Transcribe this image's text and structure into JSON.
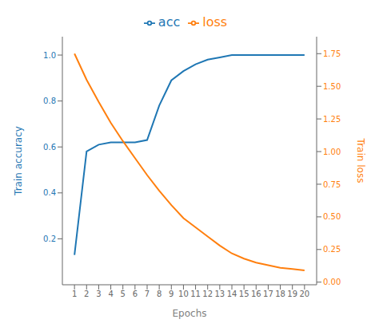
{
  "chart_data": {
    "type": "line",
    "xlabel": "Epochs",
    "ylabel": "Train accuracy",
    "y2label": "Train loss",
    "x": [
      1,
      2,
      3,
      4,
      5,
      6,
      7,
      8,
      9,
      10,
      11,
      12,
      13,
      14,
      15,
      16,
      17,
      18,
      19,
      20
    ],
    "series": [
      {
        "name": "acc",
        "color": "#1f77b4",
        "axis": "y",
        "values": [
          0.13,
          0.58,
          0.61,
          0.62,
          0.62,
          0.62,
          0.63,
          0.78,
          0.89,
          0.93,
          0.96,
          0.98,
          0.99,
          1.0,
          1.0,
          1.0,
          1.0,
          1.0,
          1.0,
          1.0
        ]
      },
      {
        "name": "loss",
        "color": "#ff7f0e",
        "axis": "y2",
        "values": [
          1.75,
          1.55,
          1.38,
          1.22,
          1.08,
          0.95,
          0.82,
          0.7,
          0.59,
          0.49,
          0.42,
          0.35,
          0.28,
          0.22,
          0.18,
          0.15,
          0.13,
          0.11,
          0.1,
          0.09
        ]
      }
    ],
    "xlim": [
      0,
      21
    ],
    "xticks": [
      1,
      2,
      3,
      4,
      5,
      6,
      7,
      8,
      9,
      10,
      11,
      12,
      13,
      14,
      15,
      16,
      17,
      18,
      19,
      20
    ],
    "ylim": [
      0.0,
      1.08
    ],
    "yticks": [
      0.2,
      0.4,
      0.6,
      0.8,
      {
        "value": 1.0,
        "label": "1.0"
      }
    ],
    "y2lim": [
      -0.02,
      1.88
    ],
    "y2ticks": [
      {
        "value": 0.0,
        "label": "0.00"
      },
      0.25,
      {
        "value": 0.5,
        "label": "0.50"
      },
      0.75,
      {
        "value": 1.0,
        "label": "1.00"
      },
      1.25,
      {
        "value": 1.5,
        "label": "1.50"
      },
      1.75
    ],
    "grid": false,
    "legend": "top"
  }
}
